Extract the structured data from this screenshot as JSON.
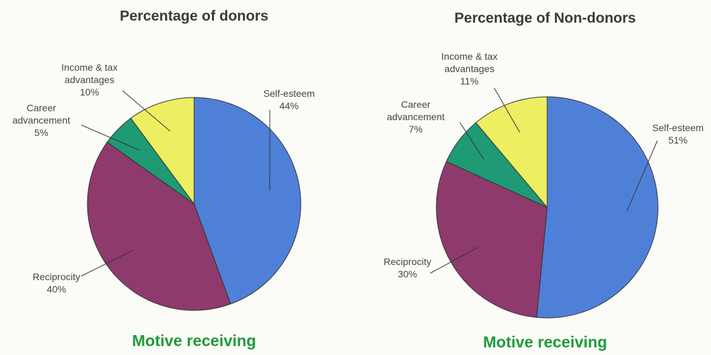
{
  "chart_data": [
    {
      "type": "pie",
      "title": "Percentage of donors",
      "caption": "Motive receiving",
      "categories": [
        "Self-esteem",
        "Reciprocity",
        "Career advancement",
        "Income & tax advantages"
      ],
      "values": [
        44,
        40,
        5,
        10
      ],
      "value_labels": [
        "44%",
        "40%",
        "5%",
        "10%"
      ],
      "colors": [
        "#4f80d8",
        "#8e3a6c",
        "#1e9a74",
        "#eeee62"
      ]
    },
    {
      "type": "pie",
      "title": "Percentage of Non-donors",
      "caption": "Motive receiving",
      "categories": [
        "Self-esteem",
        "Reciprocity",
        "Career advancement",
        "Income & tax advantages"
      ],
      "values": [
        51,
        30,
        7,
        11
      ],
      "value_labels": [
        "51%",
        "30%",
        "7%",
        "11%"
      ],
      "colors": [
        "#4f80d8",
        "#8e3a6c",
        "#1e9a74",
        "#eeee62"
      ]
    }
  ]
}
